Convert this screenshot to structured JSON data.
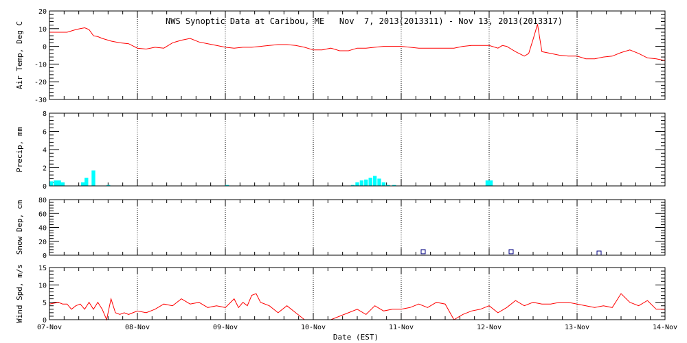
{
  "chart_data": {
    "type": "multi-panel",
    "title": "NWS Synoptic Data at Caribou, ME   Nov  7, 2013(2013311) - Nov 13, 2013(2013317)",
    "xlabel": "Date (EST)",
    "xtick_labels": [
      "07-Nov",
      "08-Nov",
      "09-Nov",
      "10-Nov",
      "11-Nov",
      "12-Nov",
      "13-Nov",
      "14-Nov"
    ],
    "panels": [
      {
        "id": "air-temp",
        "type": "line",
        "ylabel": "Air Temp, Deg C",
        "ylim": [
          -30,
          20
        ],
        "yticks": [
          -30,
          -20,
          -10,
          0,
          10,
          20
        ],
        "color": "#ff0000",
        "x": [
          0.0,
          0.1,
          0.2,
          0.3,
          0.35,
          0.4,
          0.45,
          0.5,
          0.55,
          0.6,
          0.7,
          0.8,
          0.9,
          1.0,
          1.1,
          1.2,
          1.3,
          1.4,
          1.5,
          1.6,
          1.7,
          1.8,
          1.9,
          2.0,
          2.1,
          2.2,
          2.3,
          2.4,
          2.5,
          2.6,
          2.7,
          2.8,
          2.9,
          3.0,
          3.1,
          3.2,
          3.3,
          3.4,
          3.5,
          3.6,
          3.7,
          3.8,
          3.9,
          4.0,
          4.1,
          4.2,
          4.3,
          4.4,
          4.5,
          4.6,
          4.7,
          4.8,
          4.9,
          5.0,
          5.1,
          5.15,
          5.2,
          5.3,
          5.4,
          5.45,
          5.5,
          5.55,
          5.6,
          5.7,
          5.8,
          5.9,
          6.0,
          6.1,
          6.2,
          6.3,
          6.4,
          6.5,
          6.6,
          6.7,
          6.8,
          6.9,
          7.0
        ],
        "values": [
          8,
          8,
          8,
          9.5,
          10,
          10.5,
          9.5,
          6,
          5.5,
          4.5,
          3,
          2,
          1.5,
          -1,
          -1.5,
          -0.5,
          -1,
          2,
          3.5,
          4.5,
          2.5,
          1.5,
          0.5,
          -0.5,
          -1,
          -0.5,
          -0.5,
          0,
          0.5,
          1,
          1,
          0.5,
          -0.5,
          -2,
          -2,
          -1,
          -2.5,
          -2.5,
          -1,
          -1,
          -0.5,
          0,
          0,
          0,
          -0.5,
          -1,
          -1,
          -1,
          -1,
          -1,
          0,
          0.5,
          0.5,
          0.5,
          -1,
          0.5,
          0,
          -3,
          -5.5,
          -4,
          4,
          12.5,
          -3,
          -4,
          -5,
          -5.5,
          -5.5,
          -7,
          -7,
          -6,
          -5.5,
          -3.5,
          -2,
          -4,
          -6.5,
          -7,
          -8
        ]
      },
      {
        "id": "precip",
        "type": "bar",
        "ylabel": "Precip, mm",
        "ylim": [
          0,
          8
        ],
        "yticks": [
          0,
          2,
          4,
          6,
          8
        ],
        "color": "#00ffff",
        "bar_width_days": 0.042,
        "x": [
          0.02,
          0.07,
          0.11,
          0.15,
          0.38,
          0.42,
          0.5,
          0.67,
          2.02,
          3.45,
          3.5,
          3.55,
          3.6,
          3.65,
          3.7,
          3.75,
          3.8,
          3.85,
          3.92,
          4.98,
          5.02
        ],
        "values": [
          0.5,
          0.6,
          0.6,
          0.4,
          0.4,
          0.9,
          1.7,
          0.1,
          0.1,
          0.1,
          0.4,
          0.6,
          0.7,
          0.9,
          1.1,
          0.8,
          0.4,
          0.1,
          0.1,
          0.6,
          0.6
        ]
      },
      {
        "id": "snow-depth",
        "type": "scatter",
        "ylabel": "Snow Dep, cm",
        "ylim": [
          0,
          80
        ],
        "yticks": [
          0,
          20,
          40,
          60,
          80
        ],
        "color": "#000080",
        "marker": "open-square",
        "x": [
          4.25,
          5.25,
          6.25
        ],
        "values": [
          5,
          5,
          3
        ]
      },
      {
        "id": "wind-speed",
        "type": "line",
        "ylabel": "Wind Spd, m/s",
        "ylim": [
          0,
          15
        ],
        "yticks": [
          0,
          5,
          10,
          15
        ],
        "color": "#ff0000",
        "x": [
          0.0,
          0.1,
          0.15,
          0.2,
          0.25,
          0.3,
          0.35,
          0.4,
          0.45,
          0.5,
          0.55,
          0.6,
          0.65,
          0.7,
          0.75,
          0.8,
          0.85,
          0.9,
          1.0,
          1.1,
          1.2,
          1.3,
          1.4,
          1.5,
          1.6,
          1.7,
          1.8,
          1.9,
          2.0,
          2.1,
          2.15,
          2.2,
          2.25,
          2.3,
          2.35,
          2.4,
          2.5,
          2.6,
          2.7,
          2.8,
          2.9,
          3.0,
          3.2,
          3.4,
          3.5,
          3.6,
          3.7,
          3.8,
          3.9,
          4.0,
          4.1,
          4.2,
          4.3,
          4.4,
          4.5,
          4.6,
          4.7,
          4.8,
          4.9,
          5.0,
          5.1,
          5.2,
          5.3,
          5.4,
          5.5,
          5.6,
          5.7,
          5.8,
          5.9,
          6.0,
          6.1,
          6.2,
          6.3,
          6.4,
          6.5,
          6.6,
          6.7,
          6.8,
          6.9,
          7.0
        ],
        "values": [
          4.5,
          5,
          4.5,
          4.5,
          3,
          4,
          4.5,
          3,
          5,
          3,
          5,
          3,
          0,
          6,
          2,
          1.5,
          2,
          1.5,
          2.5,
          2,
          3,
          4.5,
          4,
          6,
          4.5,
          5,
          3.5,
          4,
          3.5,
          6,
          3.5,
          5,
          4,
          7,
          7.5,
          5,
          4,
          2,
          4,
          2,
          0,
          0,
          0,
          2,
          3,
          1.5,
          4,
          2.5,
          3,
          3,
          3.5,
          4.5,
          3.5,
          5,
          4.5,
          0,
          1.5,
          2.5,
          3,
          4,
          2,
          3.5,
          5.5,
          4,
          5,
          4.5,
          4.5,
          5,
          5,
          4.5,
          4,
          3.5,
          4,
          3.5,
          7.5,
          5,
          4,
          5.5,
          3,
          3
        ]
      }
    ]
  }
}
